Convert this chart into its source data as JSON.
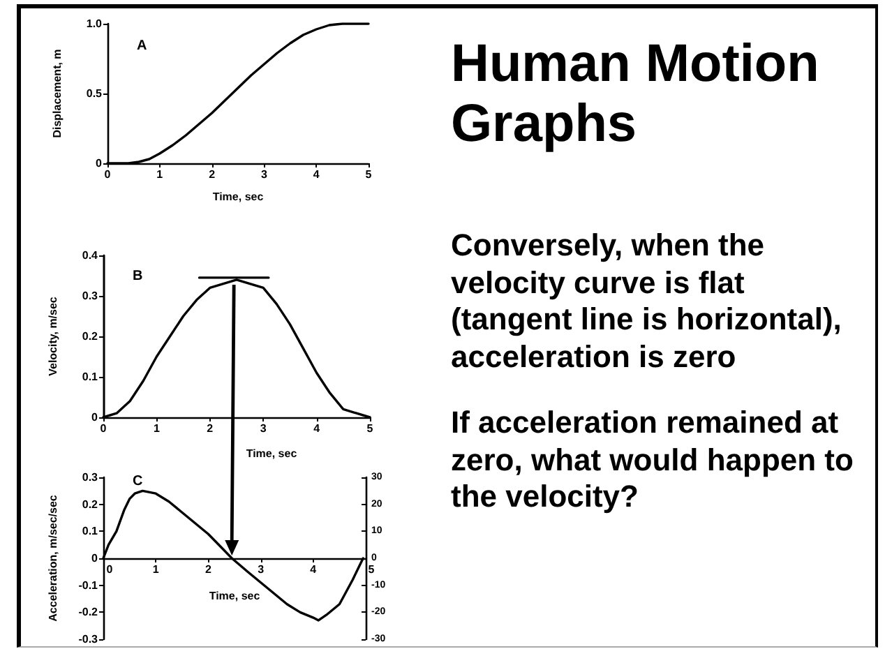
{
  "chart_data": [
    {
      "type": "line",
      "title": "A",
      "xlabel": "Time, sec",
      "ylabel": "Displacement, m",
      "color": "#000000",
      "marker": "none",
      "x": [
        0,
        0.4,
        0.6,
        0.8,
        1,
        1.25,
        1.5,
        1.75,
        2,
        2.25,
        2.5,
        2.75,
        3,
        3.25,
        3.5,
        3.75,
        4,
        4.25,
        4.5,
        4.75,
        5
      ],
      "values": [
        0,
        0,
        0.01,
        0.03,
        0.07,
        0.13,
        0.2,
        0.28,
        0.36,
        0.45,
        0.54,
        0.63,
        0.71,
        0.79,
        0.86,
        0.92,
        0.96,
        0.99,
        1,
        1,
        1
      ],
      "xlim": [
        0,
        5
      ],
      "xticks": [
        0,
        1,
        2,
        3,
        4,
        5
      ],
      "ylim": [
        0,
        1
      ],
      "yticks": [
        0,
        0.5,
        {
          "value": 1,
          "label": "1.0"
        }
      ]
    },
    {
      "type": "line",
      "title": "B",
      "xlabel": "Time, sec",
      "ylabel": "Velocity, m/sec",
      "marker": "none",
      "series": [
        {
          "color": "#000000",
          "x": [
            0,
            0.25,
            0.5,
            0.75,
            1,
            1.25,
            1.5,
            1.75,
            2,
            2.25,
            2.5,
            2.75,
            3,
            3.25,
            3.5,
            3.75,
            4,
            4.25,
            4.5,
            4.75,
            5
          ],
          "values": [
            0,
            0.01,
            0.04,
            0.09,
            0.15,
            0.2,
            0.25,
            0.29,
            0.32,
            0.33,
            0.34,
            0.33,
            0.32,
            0.28,
            0.23,
            0.17,
            0.11,
            0.06,
            0.02,
            0.01,
            0
          ]
        },
        {
          "type": "line",
          "color": "#000000",
          "x": [
            1.8,
            3.1
          ],
          "values": [
            0.345,
            0.345
          ]
        }
      ],
      "xlim": [
        0,
        5
      ],
      "xticks": [
        0,
        1,
        2,
        3,
        4,
        5
      ],
      "ylim": [
        0,
        0.4
      ],
      "yticks": [
        0,
        0.1,
        0.2,
        0.3,
        0.4
      ]
    },
    {
      "type": "line",
      "title": "C",
      "xlabel": "Time, sec",
      "ylabel": "Acceleration, m/sec/sec",
      "color": "#000000",
      "marker": "none",
      "x": [
        0,
        0.1,
        0.25,
        0.4,
        0.5,
        0.6,
        0.75,
        1,
        1.25,
        1.5,
        1.75,
        2,
        2.25,
        2.45,
        2.75,
        3,
        3.25,
        3.5,
        3.75,
        4,
        4.1,
        4.25,
        4.5,
        4.75,
        4.95
      ],
      "values": [
        0,
        0.05,
        0.1,
        0.18,
        0.22,
        0.24,
        0.25,
        0.24,
        0.21,
        0.17,
        0.13,
        0.09,
        0.04,
        0,
        -0.05,
        -0.09,
        -0.13,
        -0.17,
        -0.2,
        -0.22,
        -0.23,
        -0.21,
        -0.17,
        -0.08,
        0
      ],
      "xlim": [
        0,
        5
      ],
      "xticks": [
        0,
        1,
        2,
        3,
        4,
        5
      ],
      "ylim": [
        -0.3,
        0.3
      ],
      "yticks": [
        -0.3,
        -0.2,
        -0.1,
        0,
        0.1,
        0.2,
        0.3
      ],
      "y2lim": [
        -30,
        30
      ],
      "y2ticks": [
        -30,
        -20,
        -10,
        0,
        10,
        20,
        30
      ]
    },
    {
      "type": "other",
      "title": "Human Motion Graphs",
      "annotations": [
        "Conversely, when the velocity curve is flat (tangent line is horizontal), acceleration is zero",
        "If acceleration remained at zero, what would happen to the velocity?"
      ]
    }
  ]
}
